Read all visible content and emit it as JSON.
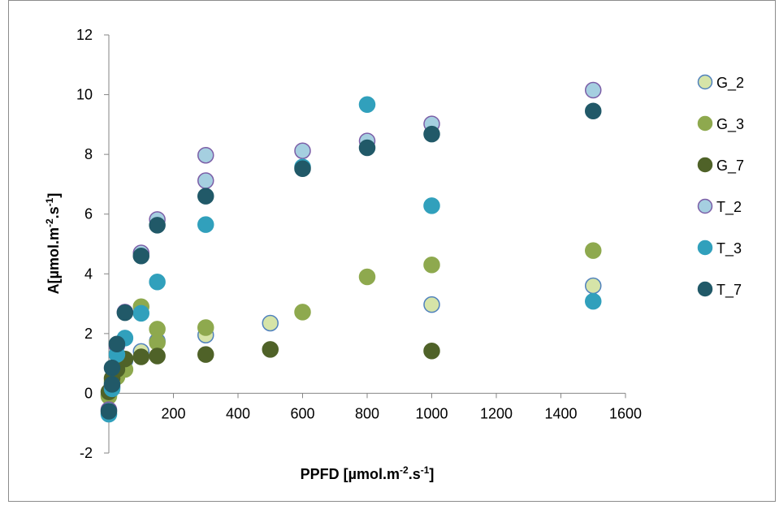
{
  "chart_data": {
    "type": "scatter",
    "xlabel": "PPFD [µmol.m-2.s-1]",
    "ylabel": "A[µmol.m-2.s-1]",
    "xlabel_parts": [
      "PPFD [µmol.m",
      "-2",
      ".s",
      "-1",
      "]"
    ],
    "ylabel_parts": [
      "A[µmol.m",
      "-2",
      ".s",
      "-1",
      "]"
    ],
    "xlim": [
      0,
      1600
    ],
    "ylim": [
      -2,
      12
    ],
    "x_ticks": [
      0,
      200,
      400,
      600,
      800,
      1000,
      1200,
      1400,
      1600
    ],
    "y_ticks": [
      -2,
      0,
      2,
      4,
      6,
      8,
      10,
      12
    ],
    "x_tick_labels": [
      "0",
      "200",
      "400",
      "600",
      "800",
      "1000",
      "1200",
      "1400",
      "1600"
    ],
    "y_tick_labels": [
      "-2",
      "0",
      "2",
      "4",
      "6",
      "8",
      "10",
      "12"
    ],
    "grid": false,
    "legend_position": "right",
    "series": [
      {
        "name": "G_2",
        "fill": "#d6e4a8",
        "stroke": "#4f81bd",
        "points": [
          [
            0,
            -0.05
          ],
          [
            10,
            0.25
          ],
          [
            25,
            0.6
          ],
          [
            50,
            1.1
          ],
          [
            100,
            1.4
          ],
          [
            150,
            1.75
          ],
          [
            300,
            1.95
          ],
          [
            500,
            2.35
          ],
          [
            1000,
            2.97
          ],
          [
            1500,
            3.6
          ]
        ]
      },
      {
        "name": "G_3",
        "fill": "#8ea94e",
        "stroke": "#8ea94e",
        "points": [
          [
            0,
            -0.1
          ],
          [
            10,
            0.4
          ],
          [
            25,
            0.55
          ],
          [
            50,
            0.8
          ],
          [
            100,
            2.9
          ],
          [
            150,
            2.15
          ],
          [
            150,
            1.7
          ],
          [
            300,
            2.2
          ],
          [
            600,
            2.72
          ],
          [
            800,
            3.9
          ],
          [
            1000,
            4.3
          ],
          [
            1500,
            4.78
          ]
        ]
      },
      {
        "name": "G_7",
        "fill": "#4f6228",
        "stroke": "#4f6228",
        "points": [
          [
            0,
            0.05
          ],
          [
            10,
            0.5
          ],
          [
            25,
            0.8
          ],
          [
            50,
            1.15
          ],
          [
            100,
            1.22
          ],
          [
            150,
            1.25
          ],
          [
            300,
            1.3
          ],
          [
            500,
            1.47
          ],
          [
            1000,
            1.42
          ]
        ]
      },
      {
        "name": "T_2",
        "fill": "#a5cfe0",
        "stroke": "#7b5ea7",
        "points": [
          [
            0,
            -0.55
          ],
          [
            10,
            0.2
          ],
          [
            25,
            1.6
          ],
          [
            50,
            2.72
          ],
          [
            100,
            4.7
          ],
          [
            150,
            5.82
          ],
          [
            300,
            7.12
          ],
          [
            300,
            7.97
          ],
          [
            600,
            8.12
          ],
          [
            800,
            8.45
          ],
          [
            1000,
            9.02
          ],
          [
            1500,
            10.15
          ]
        ]
      },
      {
        "name": "T_3",
        "fill": "#31a0bc",
        "stroke": "#31a0bc",
        "points": [
          [
            0,
            -0.7
          ],
          [
            10,
            0.15
          ],
          [
            25,
            1.3
          ],
          [
            50,
            1.85
          ],
          [
            100,
            2.68
          ],
          [
            150,
            3.73
          ],
          [
            300,
            5.65
          ],
          [
            600,
            7.58
          ],
          [
            800,
            9.67
          ],
          [
            1000,
            6.28
          ],
          [
            1500,
            3.08
          ]
        ]
      },
      {
        "name": "T_7",
        "fill": "#215968",
        "stroke": "#215968",
        "points": [
          [
            0,
            -0.6
          ],
          [
            10,
            0.3
          ],
          [
            10,
            0.85
          ],
          [
            25,
            1.65
          ],
          [
            50,
            2.7
          ],
          [
            100,
            4.6
          ],
          [
            150,
            5.63
          ],
          [
            300,
            6.6
          ],
          [
            600,
            7.52
          ],
          [
            800,
            8.22
          ],
          [
            1000,
            8.68
          ],
          [
            1500,
            9.45
          ]
        ]
      }
    ]
  }
}
